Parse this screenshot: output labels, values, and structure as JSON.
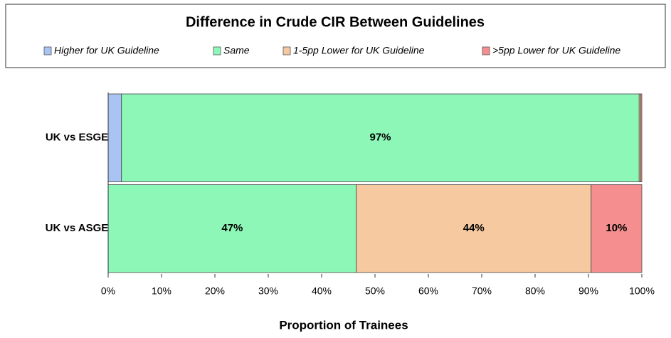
{
  "chart_data": {
    "type": "stacked_barh",
    "title": "Difference in Crude CIR Between Guidelines",
    "xlabel": "Proportion of Trainees",
    "categories": [
      "UK vs  ESGE",
      "UK vs  ASGE"
    ],
    "series": [
      {
        "name": "Higher for UK Guideline",
        "color": "#a9c3f2",
        "values": [
          2.5,
          0
        ],
        "value_labels": [
          null,
          null
        ]
      },
      {
        "name": "Same",
        "color": "#8df7b8",
        "values": [
          97,
          46.5
        ],
        "value_labels": [
          "97%",
          "47%"
        ]
      },
      {
        "name": "1-5pp Lower for UK Guideline",
        "color": "#f6c9a0",
        "values": [
          0.3,
          44
        ],
        "value_labels": [
          null,
          "44%"
        ]
      },
      {
        "name": ">5pp Lower for UK Guideline",
        "color": "#f58f8f",
        "values": [
          0.2,
          9.5
        ],
        "value_labels": [
          null,
          "10%"
        ]
      }
    ],
    "xlim": [
      0,
      100
    ],
    "xticks": [
      {
        "value": 0,
        "label": "0%"
      },
      {
        "value": 10,
        "label": "10%"
      },
      {
        "value": 20,
        "label": "20%"
      },
      {
        "value": 30,
        "label": "30%"
      },
      {
        "value": 40,
        "label": "40%"
      },
      {
        "value": 50,
        "label": "50%"
      },
      {
        "value": 60,
        "label": "60%"
      },
      {
        "value": 70,
        "label": "70%"
      },
      {
        "value": 80,
        "label": "80%"
      },
      {
        "value": 90,
        "label": "90%"
      },
      {
        "value": 100,
        "label": "100%"
      }
    ],
    "legend": "top"
  }
}
